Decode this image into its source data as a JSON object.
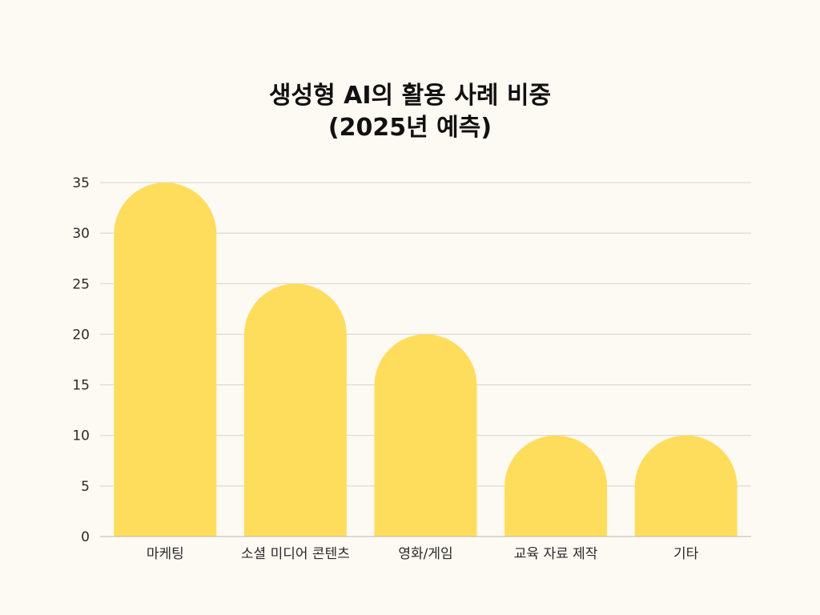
{
  "chart_data": {
    "type": "bar",
    "title_lines": [
      "생성형 AI의 활용 사례 비중",
      "(2025년 예측)"
    ],
    "categories": [
      "마케팅",
      "소셜 미디어 콘텐츠",
      "영화/게임",
      "교육 자료 제작",
      "기타"
    ],
    "values": [
      35,
      25,
      20,
      10,
      10
    ],
    "ylim": [
      0,
      35
    ],
    "yticks": [
      0,
      5,
      10,
      15,
      20,
      25,
      30,
      35
    ],
    "grid": true,
    "bar_color": "#ffdd5c",
    "grid_color": "#d6d3ce",
    "background": "#fdf9f3"
  }
}
